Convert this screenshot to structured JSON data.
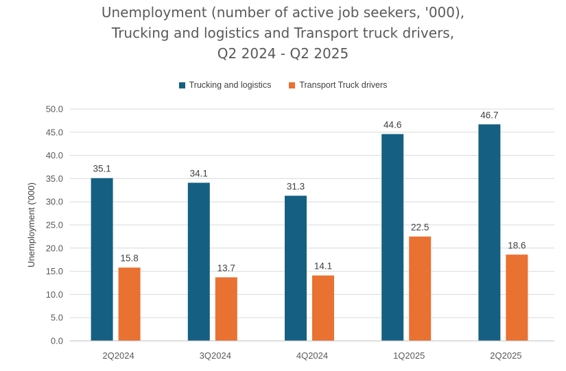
{
  "chart_data": {
    "type": "bar",
    "title_lines": [
      "Unemployment (number of active job seekers, '000),",
      "Trucking and logistics and Transport truck drivers,",
      "Q2 2024 - Q2 2025"
    ],
    "xlabel": "",
    "ylabel": "Unemployment ('000)",
    "categories": [
      "2Q2024",
      "3Q2024",
      "4Q2024",
      "1Q2025",
      "2Q2025"
    ],
    "ylim": [
      0,
      50
    ],
    "yticks": [
      "0.0",
      "5.0",
      "10.0",
      "15.0",
      "20.0",
      "25.0",
      "30.0",
      "35.0",
      "40.0",
      "45.0",
      "50.0"
    ],
    "grid": true,
    "legend_position": "top-center",
    "series": [
      {
        "name": "Trucking and logistics",
        "color": "#156082",
        "values": [
          35.1,
          34.1,
          31.3,
          44.6,
          46.7
        ],
        "labels": [
          "35.1",
          "34.1",
          "31.3",
          "44.6",
          "46.7"
        ]
      },
      {
        "name": "Transport Truck drivers",
        "color": "#E97132",
        "values": [
          15.8,
          13.7,
          14.1,
          22.5,
          18.6
        ],
        "labels": [
          "15.8",
          "13.7",
          "14.1",
          "22.5",
          "18.6"
        ]
      }
    ]
  }
}
